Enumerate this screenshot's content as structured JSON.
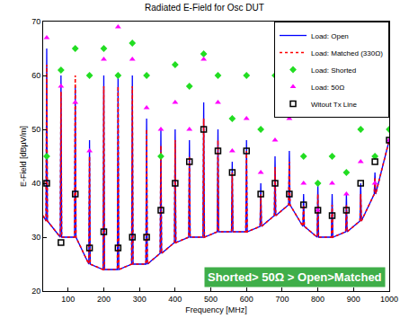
{
  "chart_data": {
    "type": "line",
    "title": "Radiated E-Field for Osc DUT",
    "x_label": "Frequency [MHz]",
    "y_label": "E-Field [dBµV/m]",
    "xlim": [
      30,
      1000
    ],
    "xticks": [
      100,
      200,
      300,
      400,
      500,
      600,
      700,
      800,
      900,
      1000
    ],
    "ylim": [
      20,
      70
    ],
    "yticks": [
      20,
      30,
      40,
      50,
      60,
      70
    ],
    "grid": false,
    "legend": "top-right",
    "annotations": [
      {
        "text": "Shorted> 50Ω > Open>Matched"
      }
    ],
    "series": [
      {
        "name": "Load: Open",
        "type": "line",
        "color": "#0000ff",
        "line_style": "solid",
        "x": [
          30,
          38,
          40,
          42,
          78,
          80,
          82,
          118,
          120,
          122,
          158,
          160,
          162,
          198,
          200,
          202,
          238,
          240,
          242,
          278,
          280,
          282,
          318,
          320,
          322,
          358,
          360,
          362,
          398,
          400,
          402,
          438,
          440,
          442,
          478,
          480,
          482,
          518,
          520,
          522,
          558,
          560,
          562,
          598,
          600,
          602,
          638,
          640,
          642,
          678,
          680,
          682,
          718,
          720,
          722,
          758,
          760,
          762,
          798,
          800,
          802,
          838,
          840,
          842,
          878,
          880,
          882,
          918,
          920,
          922,
          958,
          960,
          962,
          1000
        ],
        "values": [
          34,
          33,
          65,
          33,
          30,
          60,
          30,
          30,
          58,
          30,
          25,
          48,
          25,
          24,
          60,
          24,
          24,
          60,
          24,
          25,
          60,
          25,
          25,
          52,
          25,
          27,
          50,
          27,
          29,
          50,
          29,
          30,
          48,
          30,
          30,
          55,
          30,
          31,
          50,
          31,
          31,
          44,
          31,
          31,
          48,
          31,
          32,
          40,
          32,
          34,
          45,
          34,
          36,
          46,
          36,
          32,
          38,
          32,
          30,
          40,
          30,
          30,
          38,
          30,
          31,
          38,
          31,
          33,
          40,
          33,
          38,
          42,
          38,
          48
        ]
      },
      {
        "name": "Load: Matched (330Ω)",
        "type": "line",
        "color": "#ff0000",
        "line_style": "dotted",
        "x": [
          30,
          38,
          40,
          42,
          78,
          80,
          82,
          118,
          120,
          122,
          158,
          160,
          162,
          198,
          200,
          202,
          238,
          240,
          242,
          278,
          280,
          282,
          318,
          320,
          322,
          358,
          360,
          362,
          398,
          400,
          402,
          438,
          440,
          442,
          478,
          480,
          482,
          518,
          520,
          522,
          558,
          560,
          562,
          598,
          600,
          602,
          638,
          640,
          642,
          678,
          680,
          682,
          718,
          720,
          722,
          758,
          760,
          762,
          798,
          800,
          802,
          838,
          840,
          842,
          878,
          880,
          882,
          918,
          920,
          922,
          958,
          960,
          962,
          1000
        ],
        "values": [
          34,
          33,
          62,
          33,
          30,
          57,
          30,
          30,
          60,
          30,
          25,
          45,
          25,
          24,
          58,
          24,
          24,
          58,
          24,
          25,
          58,
          25,
          25,
          50,
          25,
          27,
          47,
          27,
          29,
          48,
          29,
          30,
          45,
          30,
          30,
          52,
          30,
          31,
          48,
          31,
          31,
          42,
          31,
          31,
          46,
          31,
          32,
          38,
          32,
          34,
          43,
          34,
          36,
          44,
          36,
          32,
          36,
          32,
          30,
          38,
          30,
          30,
          36,
          30,
          31,
          36,
          31,
          33,
          38,
          33,
          38,
          41,
          38,
          48
        ]
      },
      {
        "name": "Load: Shorted",
        "type": "scatter",
        "color": "#22dd22",
        "marker": "diamond",
        "x": [
          40,
          80,
          120,
          160,
          200,
          240,
          280,
          320,
          360,
          400,
          440,
          480,
          520,
          560,
          600,
          640,
          680,
          720,
          760,
          800,
          840,
          880,
          920,
          960,
          1000
        ],
        "values": [
          45,
          61,
          65,
          60,
          65,
          60,
          66,
          60,
          45,
          62,
          58,
          64,
          60,
          52,
          60,
          50,
          60,
          56,
          45,
          40,
          45,
          42,
          50,
          45,
          50
        ]
      },
      {
        "name": "Load: 50Ω",
        "type": "scatter",
        "color": "#ff00ff",
        "marker": "triangle",
        "x": [
          40,
          80,
          120,
          160,
          200,
          240,
          280,
          320,
          360,
          400,
          440,
          480,
          520,
          560,
          600,
          640,
          680,
          720,
          760,
          800,
          840,
          880,
          920,
          960,
          1000
        ],
        "values": [
          67,
          58,
          55,
          46,
          63,
          69,
          63,
          54,
          50,
          55,
          50,
          63,
          55,
          46,
          52,
          42,
          48,
          52,
          40,
          35,
          40,
          38,
          44,
          40,
          48
        ]
      },
      {
        "name": "Witout Tx Line",
        "type": "scatter",
        "color": "#000000",
        "marker": "square",
        "x": [
          40,
          80,
          120,
          160,
          200,
          240,
          280,
          320,
          360,
          400,
          440,
          480,
          520,
          560,
          600,
          640,
          680,
          720,
          760,
          800,
          840,
          880,
          920,
          960,
          1000
        ],
        "values": [
          40,
          29,
          38,
          28,
          31,
          28,
          30,
          30,
          35,
          40,
          44,
          50,
          46,
          42,
          46,
          38,
          40,
          38,
          36,
          35,
          34,
          35,
          40,
          44,
          48
        ]
      }
    ]
  }
}
